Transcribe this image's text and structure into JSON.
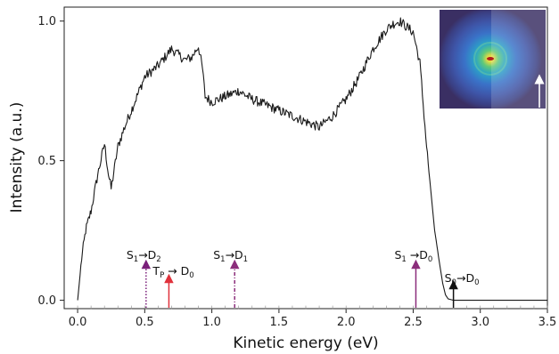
{
  "chart_data": {
    "type": "line",
    "xlabel": "Kinetic energy (eV)",
    "ylabel": "Intensity (a.u.)",
    "xlim": [
      -0.1,
      3.5
    ],
    "ylim": [
      -0.03,
      1.05
    ],
    "xticks": [
      "0.0",
      "0.5",
      "1.0",
      "1.5",
      "2.0",
      "2.5",
      "3.0",
      "3.5"
    ],
    "yticks": [
      "0.0",
      "0.5",
      "1.0"
    ],
    "grid": false,
    "series": [
      {
        "color": "#1a1a1a",
        "x": [
          0.0,
          0.03,
          0.06,
          0.1,
          0.15,
          0.2,
          0.23,
          0.25,
          0.3,
          0.35,
          0.4,
          0.5,
          0.6,
          0.65,
          0.7,
          0.75,
          0.8,
          0.85,
          0.9,
          0.93,
          0.95,
          1.0,
          1.1,
          1.2,
          1.3,
          1.4,
          1.5,
          1.6,
          1.7,
          1.8,
          1.85,
          1.9,
          2.0,
          2.1,
          2.2,
          2.3,
          2.35,
          2.4,
          2.45,
          2.5,
          2.55,
          2.6,
          2.63,
          2.66,
          2.7,
          2.72,
          2.74,
          2.76,
          2.8,
          3.0,
          3.5
        ],
        "y": [
          0.0,
          0.15,
          0.25,
          0.32,
          0.45,
          0.56,
          0.45,
          0.4,
          0.55,
          0.62,
          0.68,
          0.8,
          0.84,
          0.87,
          0.9,
          0.88,
          0.86,
          0.87,
          0.91,
          0.83,
          0.73,
          0.71,
          0.73,
          0.75,
          0.72,
          0.7,
          0.68,
          0.66,
          0.64,
          0.62,
          0.64,
          0.66,
          0.72,
          0.8,
          0.9,
          0.97,
          0.99,
          1.0,
          0.98,
          0.96,
          0.85,
          0.55,
          0.4,
          0.25,
          0.12,
          0.06,
          0.02,
          0.005,
          0.0,
          0.0,
          0.0
        ]
      }
    ],
    "annotations": [
      {
        "x": 0.51,
        "main": "S",
        "sub1": "1",
        "arrow": "→D",
        "sub2": "2",
        "color": "#7a1f7a",
        "style": "dotted"
      },
      {
        "x": 0.68,
        "main": "T",
        "sub1": "P",
        "arrow": " → D",
        "sub2": "0",
        "color": "#e0313b",
        "style": "solid"
      },
      {
        "x": 1.17,
        "main": "S",
        "sub1": "1",
        "arrow": "→D",
        "sub2": "1",
        "color": "#8b2d7b",
        "style": "dashdot"
      },
      {
        "x": 2.52,
        "main": "S",
        "sub1": "1",
        "arrow": " →D",
        "sub2": "0",
        "color": "#8b2d7b",
        "style": "solid"
      },
      {
        "x": 2.8,
        "main": "S",
        "sub1": "0",
        "arrow": "→D",
        "sub2": "0",
        "color": "#111111",
        "style": "solid"
      }
    ],
    "inset_image": "photoelectron velocity map image"
  }
}
